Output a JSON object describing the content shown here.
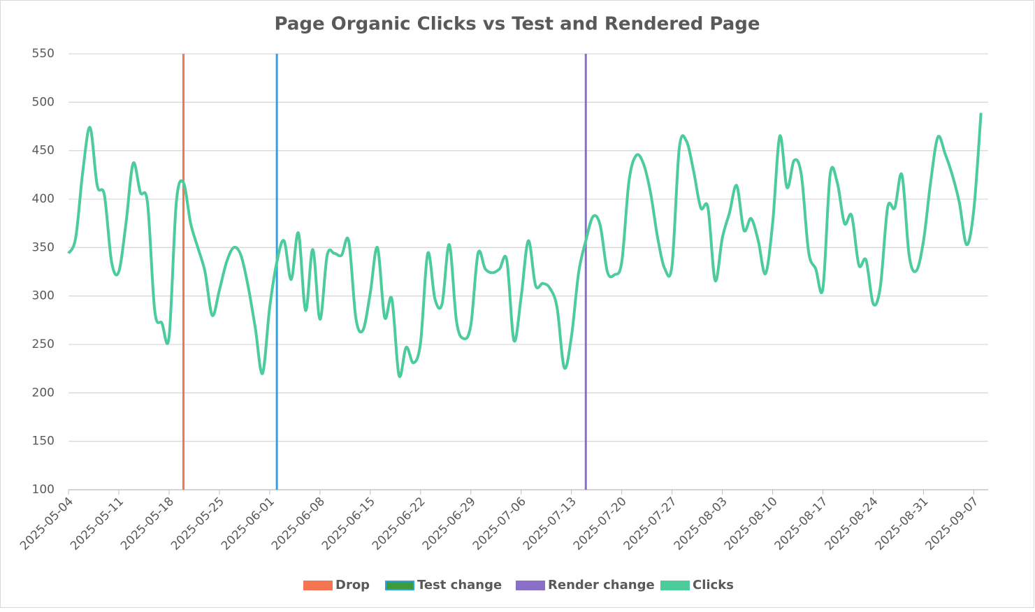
{
  "chart_data": {
    "type": "line",
    "title": "Page Organic Clicks vs Test and Rendered Page",
    "xlim": [
      "2025-05-04",
      "2025-09-09"
    ],
    "xticks": [
      "2025-05-04",
      "2025-05-11",
      "2025-05-18",
      "2025-05-25",
      "2025-06-01",
      "2025-06-08",
      "2025-06-15",
      "2025-06-22",
      "2025-06-29",
      "2025-07-06",
      "2025-07-13",
      "2025-07-20",
      "2025-07-27",
      "2025-08-03",
      "2025-08-10",
      "2025-08-17",
      "2025-08-24",
      "2025-08-31",
      "2025-09-07"
    ],
    "ylim": [
      100,
      550
    ],
    "yticks": [
      100,
      150,
      200,
      250,
      300,
      350,
      400,
      450,
      500,
      550
    ],
    "grid": true,
    "events": [
      {
        "name": "Drop",
        "color": "#f4754f",
        "x": "2025-05-20"
      },
      {
        "name": "Test change",
        "color": "#2aa5e0",
        "legend_fill": "#3d9a3d",
        "x": "2025-06-02"
      },
      {
        "name": "Render change",
        "color": "#8a6fc9",
        "x": "2025-07-15"
      }
    ],
    "x": [
      "2025-05-04",
      "2025-05-05",
      "2025-05-06",
      "2025-05-07",
      "2025-05-08",
      "2025-05-09",
      "2025-05-10",
      "2025-05-11",
      "2025-05-12",
      "2025-05-13",
      "2025-05-14",
      "2025-05-15",
      "2025-05-16",
      "2025-05-17",
      "2025-05-18",
      "2025-05-19",
      "2025-05-20",
      "2025-05-21",
      "2025-05-22",
      "2025-05-23",
      "2025-05-24",
      "2025-05-25",
      "2025-05-26",
      "2025-05-27",
      "2025-05-28",
      "2025-05-29",
      "2025-05-30",
      "2025-05-31",
      "2025-06-01",
      "2025-06-02",
      "2025-06-03",
      "2025-06-04",
      "2025-06-05",
      "2025-06-06",
      "2025-06-07",
      "2025-06-08",
      "2025-06-09",
      "2025-06-10",
      "2025-06-11",
      "2025-06-12",
      "2025-06-13",
      "2025-06-14",
      "2025-06-15",
      "2025-06-16",
      "2025-06-17",
      "2025-06-18",
      "2025-06-19",
      "2025-06-20",
      "2025-06-21",
      "2025-06-22",
      "2025-06-23",
      "2025-06-24",
      "2025-06-25",
      "2025-06-26",
      "2025-06-27",
      "2025-06-28",
      "2025-06-29",
      "2025-06-30",
      "2025-07-01",
      "2025-07-02",
      "2025-07-03",
      "2025-07-04",
      "2025-07-05",
      "2025-07-06",
      "2025-07-07",
      "2025-07-08",
      "2025-07-09",
      "2025-07-10",
      "2025-07-11",
      "2025-07-12",
      "2025-07-13",
      "2025-07-14",
      "2025-07-15",
      "2025-07-16",
      "2025-07-17",
      "2025-07-18",
      "2025-07-19",
      "2025-07-20",
      "2025-07-21",
      "2025-07-22",
      "2025-07-23",
      "2025-07-24",
      "2025-07-25",
      "2025-07-26",
      "2025-07-27",
      "2025-07-28",
      "2025-07-29",
      "2025-07-30",
      "2025-07-31",
      "2025-08-01",
      "2025-08-02",
      "2025-08-03",
      "2025-08-04",
      "2025-08-05",
      "2025-08-06",
      "2025-08-07",
      "2025-08-08",
      "2025-08-09",
      "2025-08-10",
      "2025-08-11",
      "2025-08-12",
      "2025-08-13",
      "2025-08-14",
      "2025-08-15",
      "2025-08-16",
      "2025-08-17",
      "2025-08-18",
      "2025-08-19",
      "2025-08-20",
      "2025-08-21",
      "2025-08-22",
      "2025-08-23",
      "2025-08-24",
      "2025-08-25",
      "2025-08-26",
      "2025-08-27",
      "2025-08-28",
      "2025-08-29",
      "2025-08-30",
      "2025-08-31",
      "2025-09-01",
      "2025-09-02",
      "2025-09-03",
      "2025-09-04",
      "2025-09-05",
      "2025-09-06",
      "2025-09-07",
      "2025-09-08"
    ],
    "series": [
      {
        "name": "Clicks",
        "color": "#4ccc9b",
        "values": [
          344,
          360,
          429,
          474,
          414,
          404,
          335,
          325,
          375,
          437,
          407,
          396,
          285,
          272,
          258,
          396,
          417,
          375,
          350,
          325,
          280,
          306,
          335,
          350,
          342,
          310,
          267,
          220,
          288,
          335,
          357,
          317,
          365,
          285,
          348,
          276,
          342,
          344,
          342,
          357,
          277,
          265,
          303,
          350,
          278,
          297,
          218,
          247,
          231,
          252,
          344,
          297,
          292,
          353,
          274,
          256,
          270,
          344,
          328,
          324,
          328,
          337,
          254,
          299,
          357,
          311,
          313,
          308,
          288,
          226,
          258,
          324,
          357,
          382,
          373,
          325,
          322,
          335,
          418,
          445,
          437,
          407,
          360,
          328,
          332,
          452,
          460,
          429,
          391,
          391,
          316,
          360,
          386,
          414,
          368,
          380,
          357,
          323,
          375,
          465,
          412,
          440,
          425,
          346,
          328,
          308,
          425,
          417,
          375,
          383,
          332,
          337,
          292,
          310,
          391,
          391,
          425,
          342,
          326,
          357,
          418,
          464,
          447,
          425,
          396,
          353,
          389,
          489
        ]
      }
    ]
  }
}
